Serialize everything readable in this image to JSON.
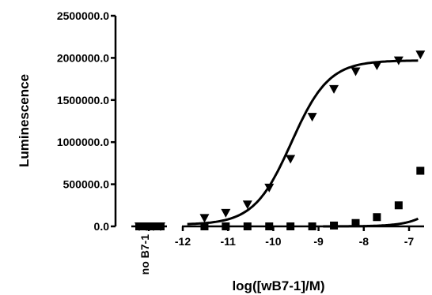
{
  "chart_data": {
    "type": "scatter",
    "title": "",
    "xlabel": "log([wB7-1]/M)",
    "ylabel": "Luminescence",
    "ylim": [
      0,
      2500000
    ],
    "xlim": [
      -12,
      -6.75
    ],
    "y_ticks": [
      0,
      500000,
      1000000,
      1500000,
      2000000,
      2500000
    ],
    "y_tick_labels": [
      "0.0",
      "500000.0",
      "1000000.0",
      "1500000.0",
      "2000000.0",
      "2500000.0"
    ],
    "x_ticks": [
      -12,
      -11,
      -10,
      -9,
      -8,
      -7
    ],
    "x_tick_labels": [
      "-12",
      "-11",
      "-10",
      "-9",
      "-8",
      "-7"
    ],
    "control_label": "no B7-1",
    "grid": false,
    "legend": "none",
    "series": [
      {
        "marker": "triangle-down",
        "fit": "sigmoidal dose-response",
        "control": [
          0,
          0,
          0,
          0
        ],
        "x": [
          -11.52,
          -11.05,
          -10.57,
          -10.09,
          -9.62,
          -9.14,
          -8.66,
          -8.18,
          -7.71,
          -7.23,
          -6.75
        ],
        "y": [
          100000,
          160000,
          260000,
          460000,
          800000,
          1300000,
          1630000,
          1840000,
          1910000,
          1970000,
          2040000
        ]
      },
      {
        "marker": "square",
        "fit": "sigmoidal dose-response",
        "control": [
          0,
          0,
          0,
          0
        ],
        "x": [
          -11.52,
          -11.05,
          -10.57,
          -10.09,
          -9.62,
          -9.14,
          -8.66,
          -8.18,
          -7.71,
          -7.23,
          -6.75
        ],
        "y": [
          0,
          0,
          0,
          0,
          0,
          0,
          10000,
          40000,
          110000,
          250000,
          660000
        ]
      }
    ]
  }
}
